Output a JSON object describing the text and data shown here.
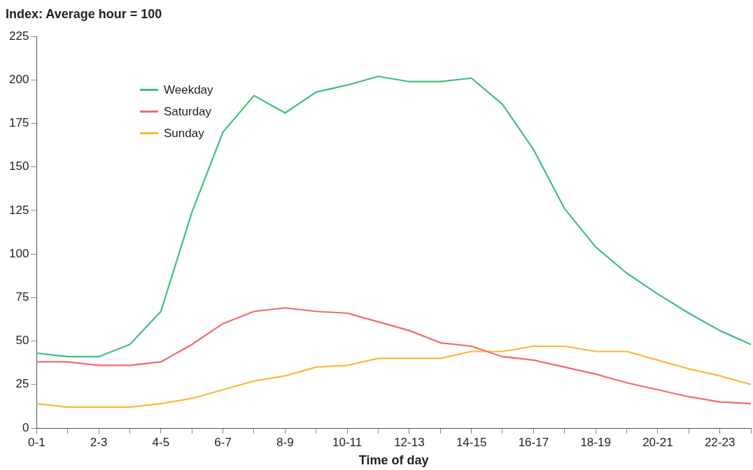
{
  "chart_data": {
    "type": "line",
    "ylabel": "Index: Average hour = 100",
    "xlabel": "Time of day",
    "categories": [
      "0-1",
      null,
      "2-3",
      null,
      "4-5",
      null,
      "6-7",
      null,
      "8-9",
      null,
      "10-11",
      null,
      "12-13",
      null,
      "14-15",
      null,
      "16-17",
      null,
      "18-19",
      null,
      "20-21",
      null,
      "22-23",
      null
    ],
    "series": [
      {
        "name": "Weekday",
        "color": "#3cc07a",
        "values": [
          43,
          41,
          41,
          48,
          67,
          124,
          170,
          191,
          181,
          193,
          197,
          202,
          199,
          199,
          201,
          186,
          160,
          126,
          104,
          89,
          77,
          66,
          56,
          48
        ]
      },
      {
        "name": "Saturday",
        "color": "#f26b6b",
        "values": [
          38,
          38,
          36,
          36,
          38,
          48,
          60,
          67,
          69,
          67,
          66,
          61,
          56,
          49,
          47,
          41,
          39,
          35,
          31,
          26,
          22,
          18,
          15,
          14
        ]
      },
      {
        "name": "Sunday",
        "color": "#fbb836",
        "values": [
          14,
          12,
          12,
          12,
          14,
          17,
          22,
          27,
          30,
          35,
          36,
          40,
          40,
          40,
          44,
          44,
          47,
          47,
          44,
          44,
          39,
          34,
          30,
          25
        ]
      }
    ],
    "ylim": [
      0,
      225
    ],
    "yticks": [
      0,
      25,
      50,
      75,
      100,
      125,
      150,
      175,
      200,
      225
    ],
    "grid": false,
    "legend": "top left",
    "marker": "none",
    "line_style": "solid"
  }
}
